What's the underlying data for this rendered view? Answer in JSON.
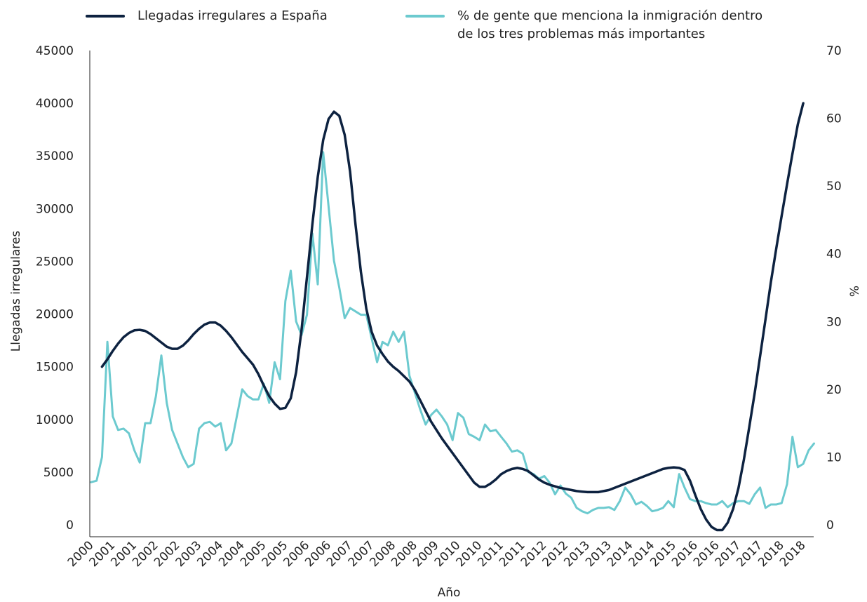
{
  "chart_data": {
    "type": "line",
    "x_label": "Año",
    "y_label": "Llegadas irregulares",
    "y2_label": "%",
    "legend": "top",
    "categories": [
      "2000",
      null,
      null,
      null,
      "2001",
      null,
      null,
      null,
      "2001",
      null,
      null,
      null,
      "2002",
      null,
      null,
      null,
      "2002",
      null,
      null,
      null,
      "2003",
      null,
      null,
      null,
      "2004",
      null,
      null,
      null,
      "2004",
      null,
      null,
      null,
      "2005",
      null,
      null,
      null,
      "2005",
      null,
      null,
      null,
      "2006",
      null,
      null,
      null,
      "2006",
      null,
      null,
      null,
      "2007",
      null,
      null,
      null,
      "2007",
      null,
      null,
      null,
      "2008",
      null,
      null,
      null,
      "2008",
      null,
      null,
      null,
      "2009",
      null,
      null,
      null,
      "2010",
      null,
      null,
      null,
      "2010",
      null,
      null,
      null,
      "2011",
      null,
      null,
      null,
      "2011",
      null,
      null,
      null,
      "2012",
      null,
      null,
      null,
      "2012",
      null,
      null,
      null,
      "2013",
      null,
      null,
      null,
      "2013",
      null,
      null,
      null,
      "2014",
      null,
      null,
      null,
      "2014",
      null,
      null,
      null,
      "2015",
      null,
      null,
      null,
      "2016",
      null,
      null,
      null,
      "2016",
      null,
      null,
      null,
      "2017",
      null,
      null,
      null,
      "2017",
      null,
      null,
      null,
      "2018",
      null,
      null,
      null,
      "2018",
      null,
      null
    ],
    "series": [
      {
        "name": "Llegadas irregulares a España",
        "color": "#0d2240",
        "axis": "y",
        "values": [
          null,
          null,
          15000,
          15700,
          16500,
          17200,
          17800,
          18200,
          18450,
          18500,
          18400,
          18100,
          17700,
          17300,
          16900,
          16700,
          16700,
          17000,
          17500,
          18100,
          18600,
          19000,
          19200,
          19200,
          18900,
          18400,
          17800,
          17100,
          16400,
          15800,
          15200,
          14300,
          13200,
          12200,
          11500,
          11000,
          11100,
          12000,
          14500,
          18500,
          23500,
          28500,
          33000,
          36500,
          38500,
          39200,
          38800,
          37000,
          33500,
          28500,
          24000,
          20500,
          18300,
          17000,
          16200,
          15500,
          15000,
          14600,
          14100,
          13600,
          12800,
          11800,
          10800,
          9800,
          9000,
          8200,
          7500,
          6800,
          6100,
          5400,
          4700,
          4000,
          3600,
          3600,
          3900,
          4300,
          4800,
          5100,
          5300,
          5400,
          5300,
          5100,
          4700,
          4300,
          4000,
          3800,
          3650,
          3500,
          3400,
          3300,
          3200,
          3150,
          3100,
          3100,
          3100,
          3200,
          3300,
          3500,
          3700,
          3900,
          4100,
          4300,
          4500,
          4700,
          4900,
          5100,
          5300,
          5400,
          5450,
          5400,
          5200,
          4200,
          2800,
          1500,
          500,
          -200,
          -500,
          -500,
          200,
          1500,
          3500,
          6200,
          9300,
          12500,
          16000,
          19500,
          23000,
          26200,
          29300,
          32300,
          35200,
          38000,
          40000,
          null,
          null
        ]
      },
      {
        "name": "% de gente que menciona la inmigración dentro de los tres problemas más importantes",
        "color": "#6ccacf",
        "axis": "y2",
        "values": [
          6.3,
          6.5,
          10,
          27,
          16,
          14,
          14.2,
          13.5,
          11,
          9.2,
          15,
          15,
          19,
          25,
          18,
          14,
          12,
          10,
          8.5,
          9,
          14.2,
          15,
          15.2,
          14.5,
          15,
          11,
          12,
          16,
          20,
          19,
          18.5,
          18.5,
          20.8,
          18,
          24,
          21.5,
          33,
          37.5,
          30,
          28,
          31,
          43,
          35.5,
          55,
          47,
          39,
          35,
          30.5,
          32,
          31.5,
          31,
          31,
          27.5,
          24,
          27,
          26.5,
          28.5,
          27,
          28.5,
          22,
          19.5,
          17,
          14.8,
          16.2,
          17,
          16,
          14.8,
          12.5,
          16.5,
          15.8,
          13.4,
          13,
          12.5,
          14.8,
          13.8,
          14,
          13,
          12,
          10.8,
          11,
          10.5,
          7.8,
          7.5,
          6.8,
          7.2,
          6.2,
          4.5,
          5.8,
          4.6,
          4,
          2.5,
          2,
          1.7,
          2.2,
          2.5,
          2.5,
          2.6,
          2.2,
          3.5,
          5.5,
          4.5,
          3,
          3.4,
          2.8,
          2,
          2.2,
          2.5,
          3.5,
          2.6,
          7.5,
          5.5,
          3.8,
          3.5,
          3.5,
          3.2,
          3,
          3,
          3.5,
          2.6,
          3.2,
          3.5,
          3.5,
          3.1,
          4.5,
          5.5,
          2.5,
          3,
          3,
          3.2,
          6,
          13,
          8.5,
          9,
          11,
          12
        ]
      }
    ],
    "ylim": [
      0,
      45000
    ],
    "yticks": [
      0,
      5000,
      10000,
      15000,
      20000,
      25000,
      30000,
      35000,
      40000,
      45000
    ],
    "y2lim": [
      0,
      70
    ],
    "y2ticks": [
      0,
      10,
      20,
      30,
      40,
      50,
      60,
      70
    ]
  }
}
